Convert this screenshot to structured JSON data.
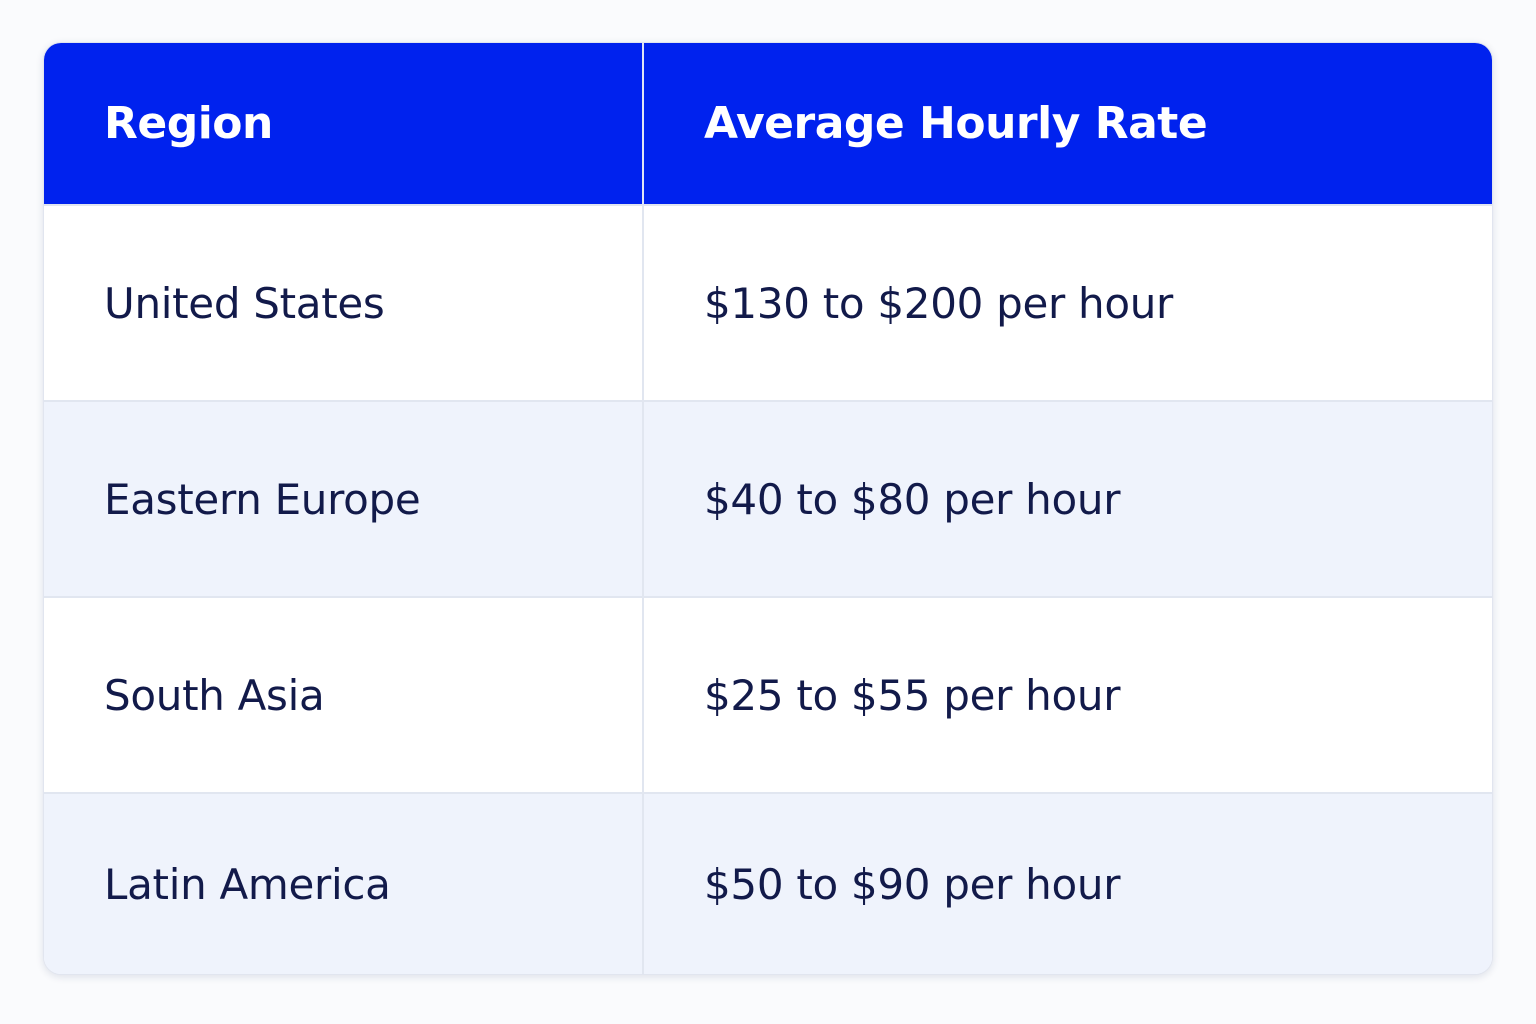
{
  "table": {
    "headers": [
      "Region",
      "Average Hourly Rate"
    ],
    "rows": [
      [
        "United States",
        "$130 to $200 per hour"
      ],
      [
        "Eastern Europe",
        "$40 to $80 per hour"
      ],
      [
        "South Asia",
        "$25 to $55 per hour"
      ],
      [
        "Latin America",
        "$50 to $90 per hour"
      ]
    ]
  }
}
